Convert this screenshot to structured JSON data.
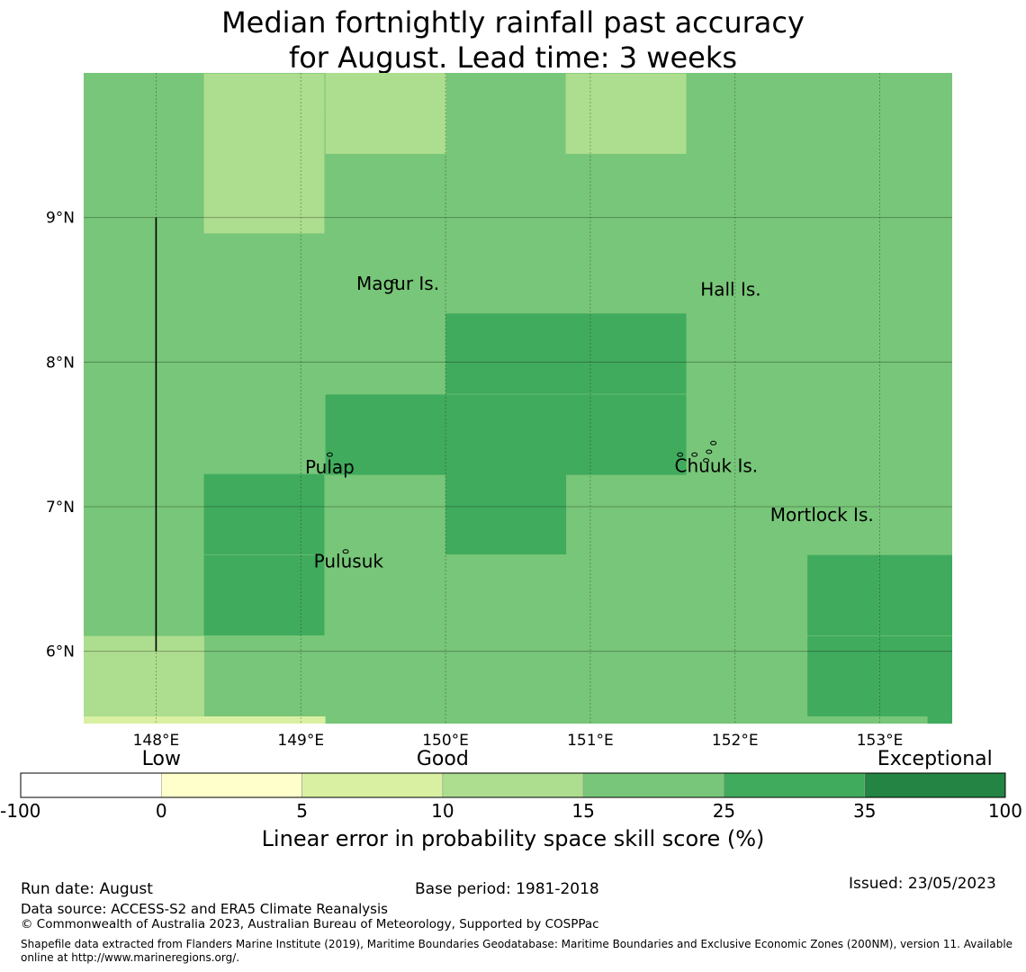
{
  "title_line1": "Median fortnightly rainfall past accuracy",
  "title_line2": "for August. Lead time: 3 weeks",
  "map": {
    "lon_range": [
      147.5,
      153.5
    ],
    "lat_range": [
      5.5,
      10.0
    ],
    "grid_lines": true,
    "lon_ticks": [
      {
        "value": 148,
        "label": "148°E"
      },
      {
        "value": 149,
        "label": "149°E"
      },
      {
        "value": 150,
        "label": "150°E"
      },
      {
        "value": 151,
        "label": "151°E"
      },
      {
        "value": 152,
        "label": "152°E"
      },
      {
        "value": 153,
        "label": "153°E"
      }
    ],
    "lat_ticks": [
      {
        "value": 9,
        "label": "9°N"
      },
      {
        "value": 8,
        "label": "8°N"
      },
      {
        "value": 7,
        "label": "7°N"
      },
      {
        "value": 6,
        "label": "6°N"
      }
    ],
    "cell_size_deg": [
      0.833,
      0.556
    ],
    "cells": [
      {
        "lon0": 148.33,
        "lat0": 9.44,
        "level": 3
      },
      {
        "lon0": 149.17,
        "lat0": 9.44,
        "level": 3
      },
      {
        "lon0": 149.17,
        "lat0": 9.72,
        "level": 3
      },
      {
        "lon0": 150.83,
        "lat0": 9.44,
        "level": 3
      },
      {
        "lon0": 148.33,
        "lat0": 8.89,
        "level": 3
      },
      {
        "lon0": 150.0,
        "lat0": 7.78,
        "level": 5
      },
      {
        "lon0": 150.83,
        "lat0": 7.78,
        "level": 5
      },
      {
        "lon0": 149.17,
        "lat0": 7.22,
        "level": 5
      },
      {
        "lon0": 150.0,
        "lat0": 7.22,
        "level": 5
      },
      {
        "lon0": 150.83,
        "lat0": 7.22,
        "level": 5
      },
      {
        "lon0": 148.33,
        "lat0": 6.67,
        "level": 5
      },
      {
        "lon0": 150.0,
        "lat0": 6.67,
        "level": 5
      },
      {
        "lon0": 148.33,
        "lat0": 6.11,
        "level": 5
      },
      {
        "lon0": 152.5,
        "lat0": 6.11,
        "level": 5
      },
      {
        "lon0": 153.33,
        "lat0": 6.11,
        "level": 5
      },
      {
        "lon0": 147.5,
        "lat0": 5.55,
        "level": 3
      },
      {
        "lon0": 152.5,
        "lat0": 5.55,
        "level": 5
      },
      {
        "lon0": 153.33,
        "lat0": 5.55,
        "level": 5
      }
    ],
    "base_level": 4,
    "places": [
      {
        "name": "Magur Is.",
        "lon": 149.67,
        "lat": 8.5
      },
      {
        "name": "Hall Is.",
        "lon": 151.97,
        "lat": 8.46
      },
      {
        "name": "Pulap",
        "lon": 149.2,
        "lat": 7.23
      },
      {
        "name": "Chuuk Is.",
        "lon": 151.87,
        "lat": 7.24
      },
      {
        "name": "Mortlock Is.",
        "lon": 152.6,
        "lat": 6.9
      },
      {
        "name": "Pulusuk",
        "lon": 149.33,
        "lat": 6.58
      }
    ],
    "boundary_line": {
      "lon": 148.0,
      "lat_from": 6.0,
      "lat_to": 9.0
    }
  },
  "colorbar": {
    "categories": [
      {
        "label": "Low",
        "position": 1
      },
      {
        "label": "Good",
        "position": 3
      },
      {
        "label": "Exceptional",
        "position": 6
      }
    ],
    "bins": [
      "-100",
      "0",
      "5",
      "10",
      "15",
      "25",
      "35",
      "100"
    ],
    "colors": [
      "#ffffff",
      "#ffffcc",
      "#d9f0a3",
      "#addd8e",
      "#78c679",
      "#41ab5d",
      "#238443"
    ],
    "title": "Linear error in probability space skill score (%)"
  },
  "footer": {
    "run_date": "Run date: August",
    "base_period": "Base period: 1981-2018",
    "issued": "Issued: 23/05/2023",
    "data_source": "Data source: ACCESS-S2 and ERA5 Climate Reanalysis",
    "copyright": "© Commonwealth of Australia 2023, Australian Bureau of Meteorology, Supported by COSPPac",
    "shapefile": "Shapefile data extracted from Flanders Marine Institute (2019), Maritime Boundaries Geodatabase: Maritime Boundaries and Exclusive Economic Zones (200NM), version 11. Available online at http://www.marineregions.org/."
  }
}
